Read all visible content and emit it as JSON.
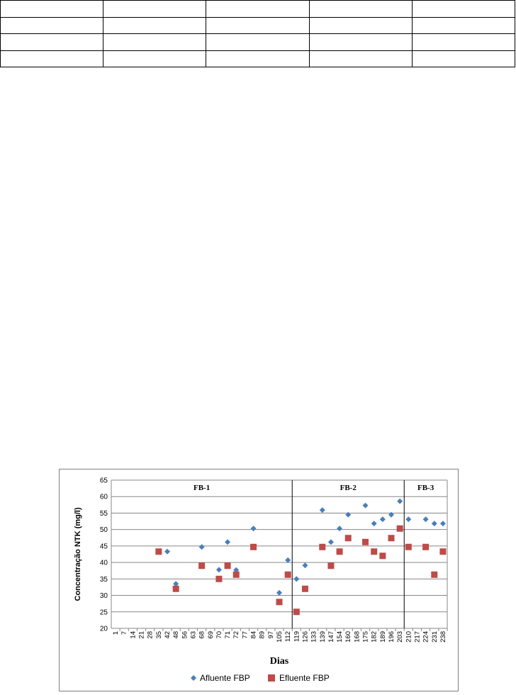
{
  "table": {
    "rows": 4,
    "cols": 5
  },
  "chart_data": {
    "type": "scatter",
    "xlabel": "Dias",
    "ylabel": "Concentração NTK (mg/l)",
    "ylim": [
      20,
      65
    ],
    "ytick_step": 5,
    "categories": [
      "1",
      "7",
      "14",
      "21",
      "28",
      "35",
      "42",
      "48",
      "56",
      "63",
      "68",
      "69",
      "70",
      "71",
      "72",
      "77",
      "84",
      "89",
      "97",
      "105",
      "112",
      "119",
      "126",
      "133",
      "139",
      "147",
      "154",
      "160",
      "168",
      "175",
      "182",
      "189",
      "196",
      "203",
      "210",
      "217",
      "224",
      "231",
      "238"
    ],
    "phases": [
      {
        "label": "FB-1",
        "from": "1",
        "to": "112"
      },
      {
        "label": "FB-2",
        "from": "112",
        "to": "203"
      },
      {
        "label": "FB-3",
        "from": "203",
        "to": "238"
      }
    ],
    "phase_boundaries": [
      "112",
      "203"
    ],
    "series": [
      {
        "name": "Afluente FBP",
        "marker": "diamond",
        "color": "#4a7ebb",
        "points": [
          {
            "x": "42",
            "y": 43.3
          },
          {
            "x": "48",
            "y": 33.5
          },
          {
            "x": "68",
            "y": 44.7
          },
          {
            "x": "70",
            "y": 37.8
          },
          {
            "x": "71",
            "y": 46.2
          },
          {
            "x": "72",
            "y": 37.7
          },
          {
            "x": "84",
            "y": 50.3
          },
          {
            "x": "105",
            "y": 30.8
          },
          {
            "x": "112",
            "y": 40.7
          },
          {
            "x": "119",
            "y": 35.0
          },
          {
            "x": "126",
            "y": 39.1
          },
          {
            "x": "139",
            "y": 55.9
          },
          {
            "x": "147",
            "y": 46.2
          },
          {
            "x": "154",
            "y": 50.3
          },
          {
            "x": "160",
            "y": 54.5
          },
          {
            "x": "175",
            "y": 57.3
          },
          {
            "x": "182",
            "y": 51.8
          },
          {
            "x": "189",
            "y": 53.1
          },
          {
            "x": "196",
            "y": 54.5
          },
          {
            "x": "203",
            "y": 58.6
          },
          {
            "x": "210",
            "y": 53.1
          },
          {
            "x": "224",
            "y": 53.1
          },
          {
            "x": "231",
            "y": 51.8
          },
          {
            "x": "238",
            "y": 51.8
          }
        ]
      },
      {
        "name": "Efluente FBP",
        "marker": "square",
        "color": "#be4b48",
        "points": [
          {
            "x": "35",
            "y": 43.3
          },
          {
            "x": "48",
            "y": 32.0
          },
          {
            "x": "68",
            "y": 39.0
          },
          {
            "x": "70",
            "y": 35.0
          },
          {
            "x": "71",
            "y": 39.0
          },
          {
            "x": "72",
            "y": 36.3
          },
          {
            "x": "84",
            "y": 44.7
          },
          {
            "x": "105",
            "y": 28.0
          },
          {
            "x": "112",
            "y": 36.3
          },
          {
            "x": "119",
            "y": 25.0
          },
          {
            "x": "126",
            "y": 32.0
          },
          {
            "x": "139",
            "y": 44.7
          },
          {
            "x": "147",
            "y": 39.0
          },
          {
            "x": "154",
            "y": 43.3
          },
          {
            "x": "160",
            "y": 47.4
          },
          {
            "x": "175",
            "y": 46.2
          },
          {
            "x": "182",
            "y": 43.3
          },
          {
            "x": "189",
            "y": 42.0
          },
          {
            "x": "196",
            "y": 47.4
          },
          {
            "x": "203",
            "y": 50.3
          },
          {
            "x": "210",
            "y": 44.7
          },
          {
            "x": "224",
            "y": 44.7
          },
          {
            "x": "231",
            "y": 36.3
          },
          {
            "x": "238",
            "y": 43.3
          }
        ]
      }
    ],
    "grid": true,
    "legend_position": "bottom"
  }
}
